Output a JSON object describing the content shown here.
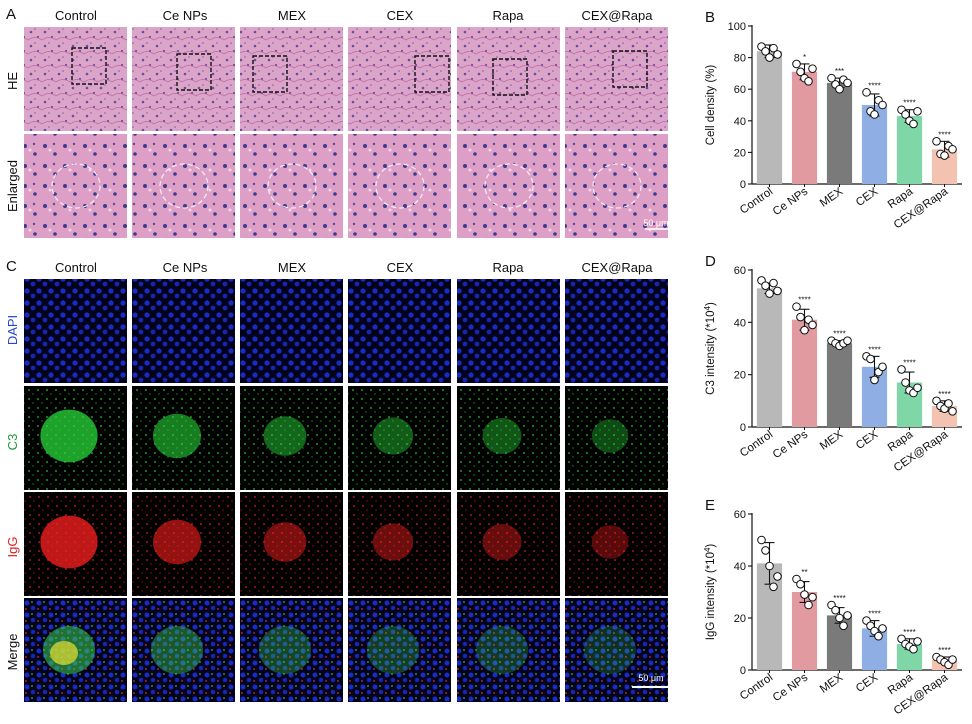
{
  "groups": [
    "Control",
    "Ce NPs",
    "MEX",
    "CEX",
    "Rapa",
    "CEX@Rapa"
  ],
  "bar_colors": [
    "#b8b8b8",
    "#e09aa0",
    "#7a7a7a",
    "#8faee3",
    "#7fd6a6",
    "#f3c2b0"
  ],
  "panel_a": {
    "letter": "A",
    "rows": [
      {
        "label": "HE",
        "color": "#111111",
        "bg": "#dba4c9",
        "dot": "#6b4c9c",
        "accent": "#c06aa5"
      },
      {
        "label": "Enlarged",
        "color": "#111111",
        "bg": "#de9fc6",
        "dot": "#3f3b8e",
        "accent": "#f1d6e9"
      }
    ],
    "scale_label": "50 μm"
  },
  "panel_c": {
    "letter": "C",
    "rows": [
      {
        "label": "DAPI",
        "color": "#2448c8"
      },
      {
        "label": "C3",
        "color": "#1f9a3a"
      },
      {
        "label": "IgG",
        "color": "#e02222"
      },
      {
        "label": "Merge",
        "color": "#111111"
      }
    ],
    "scale_label": "50 μm"
  },
  "chart_data": [
    {
      "letter": "B",
      "type": "bar",
      "categories": [
        "Control",
        "Ce NPs",
        "MEX",
        "CEX",
        "Rapa",
        "CEX@Rapa"
      ],
      "values": [
        84,
        71,
        64,
        50,
        43,
        22
      ],
      "errors": [
        4,
        5,
        3,
        7,
        4,
        5
      ],
      "points": [
        [
          87,
          84,
          80,
          86,
          82
        ],
        [
          76,
          71,
          67,
          65,
          73
        ],
        [
          67,
          63,
          60,
          66,
          64
        ],
        [
          58,
          46,
          44,
          53,
          50
        ],
        [
          47,
          44,
          40,
          38,
          46
        ],
        [
          27,
          19,
          18,
          24,
          22
        ]
      ],
      "significance": [
        "",
        "*",
        "***",
        "****",
        "****",
        "****"
      ],
      "ylabel": "Cell density (%)",
      "ylim": [
        0,
        100
      ],
      "yticks": [
        0,
        20,
        40,
        60,
        80,
        100
      ]
    },
    {
      "letter": "D",
      "type": "bar",
      "categories": [
        "Control",
        "Ce NPs",
        "MEX",
        "CEX",
        "Rapa",
        "CEX@Rapa"
      ],
      "values": [
        53,
        41,
        32,
        23,
        17,
        8
      ],
      "errors": [
        2,
        4,
        1,
        4,
        4,
        2
      ],
      "points": [
        [
          56,
          54,
          51,
          55,
          52
        ],
        [
          46,
          42,
          37,
          41,
          39
        ],
        [
          33,
          32,
          31,
          32,
          33
        ],
        [
          27,
          26,
          18,
          21,
          23
        ],
        [
          22,
          17,
          14,
          13,
          15
        ],
        [
          10,
          8,
          7,
          9,
          6
        ]
      ],
      "significance": [
        "",
        "****",
        "****",
        "****",
        "****",
        "****"
      ],
      "ylabel_main": "C3 intensity (*10",
      "ylabel_sup": "4",
      "ylabel_end": ")",
      "ylim": [
        0,
        60
      ],
      "yticks": [
        0,
        20,
        40,
        60
      ]
    },
    {
      "letter": "E",
      "type": "bar",
      "categories": [
        "Control",
        "Ce NPs",
        "MEX",
        "CEX",
        "Rapa",
        "CEX@Rapa"
      ],
      "values": [
        41,
        30,
        21,
        16,
        10,
        4
      ],
      "errors": [
        8,
        4,
        3,
        3,
        2,
        1
      ],
      "points": [
        [
          50,
          46,
          40,
          32,
          36
        ],
        [
          35,
          33,
          29,
          25,
          28
        ],
        [
          25,
          23,
          20,
          17,
          21
        ],
        [
          19,
          17,
          15,
          13,
          16
        ],
        [
          12,
          10,
          9,
          8,
          11
        ],
        [
          5,
          4,
          3,
          2,
          4
        ]
      ],
      "significance": [
        "",
        "**",
        "****",
        "****",
        "****",
        "****"
      ],
      "ylabel_main": "IgG intensity (*10",
      "ylabel_sup": "4",
      "ylabel_end": ")",
      "ylim": [
        0,
        60
      ],
      "yticks": [
        0,
        20,
        40,
        60
      ]
    }
  ]
}
